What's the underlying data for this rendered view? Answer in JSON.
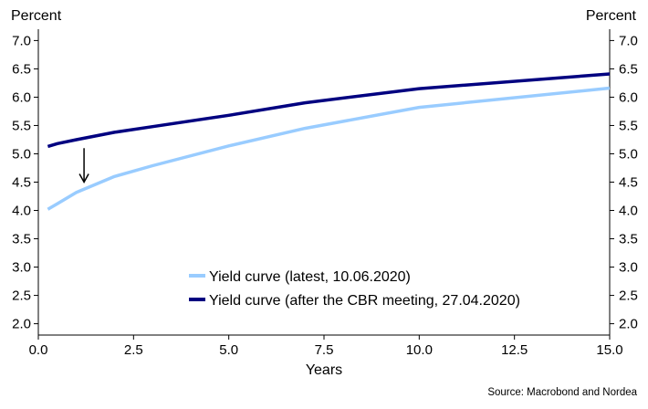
{
  "chart_data": {
    "type": "line",
    "xlabel": "Years",
    "ylabel_left": "Percent",
    "ylabel_right": "Percent",
    "xlim": [
      0,
      15
    ],
    "ylim": [
      1.8,
      7.2
    ],
    "xticks": [
      "0.0",
      "2.5",
      "5.0",
      "7.5",
      "10.0",
      "12.5",
      "15.0"
    ],
    "yticks": [
      "2.0",
      "2.5",
      "3.0",
      "3.5",
      "4.0",
      "4.5",
      "5.0",
      "5.5",
      "6.0",
      "6.5",
      "7.0"
    ],
    "grid": false,
    "legend_position": "bottom-center",
    "series": [
      {
        "name": "Yield curve (latest, 10.06.2020)",
        "color": "#99ccff",
        "x": [
          0.25,
          0.5,
          1,
          2,
          3,
          5,
          7,
          10,
          15
        ],
        "values": [
          4.02,
          4.12,
          4.32,
          4.6,
          4.79,
          5.14,
          5.45,
          5.82,
          6.16
        ]
      },
      {
        "name": "Yield curve (after the CBR meeting, 27.04.2020)",
        "color": "#000080",
        "x": [
          0.25,
          0.5,
          1,
          2,
          3,
          5,
          7,
          10,
          15
        ],
        "values": [
          5.13,
          5.18,
          5.25,
          5.38,
          5.48,
          5.68,
          5.9,
          6.15,
          6.41
        ]
      }
    ],
    "annotations": [
      {
        "type": "arrow-down",
        "x": 1.2,
        "y_from": 5.1,
        "y_to": 4.5
      }
    ]
  },
  "source": "Source: Macrobond and Nordea"
}
